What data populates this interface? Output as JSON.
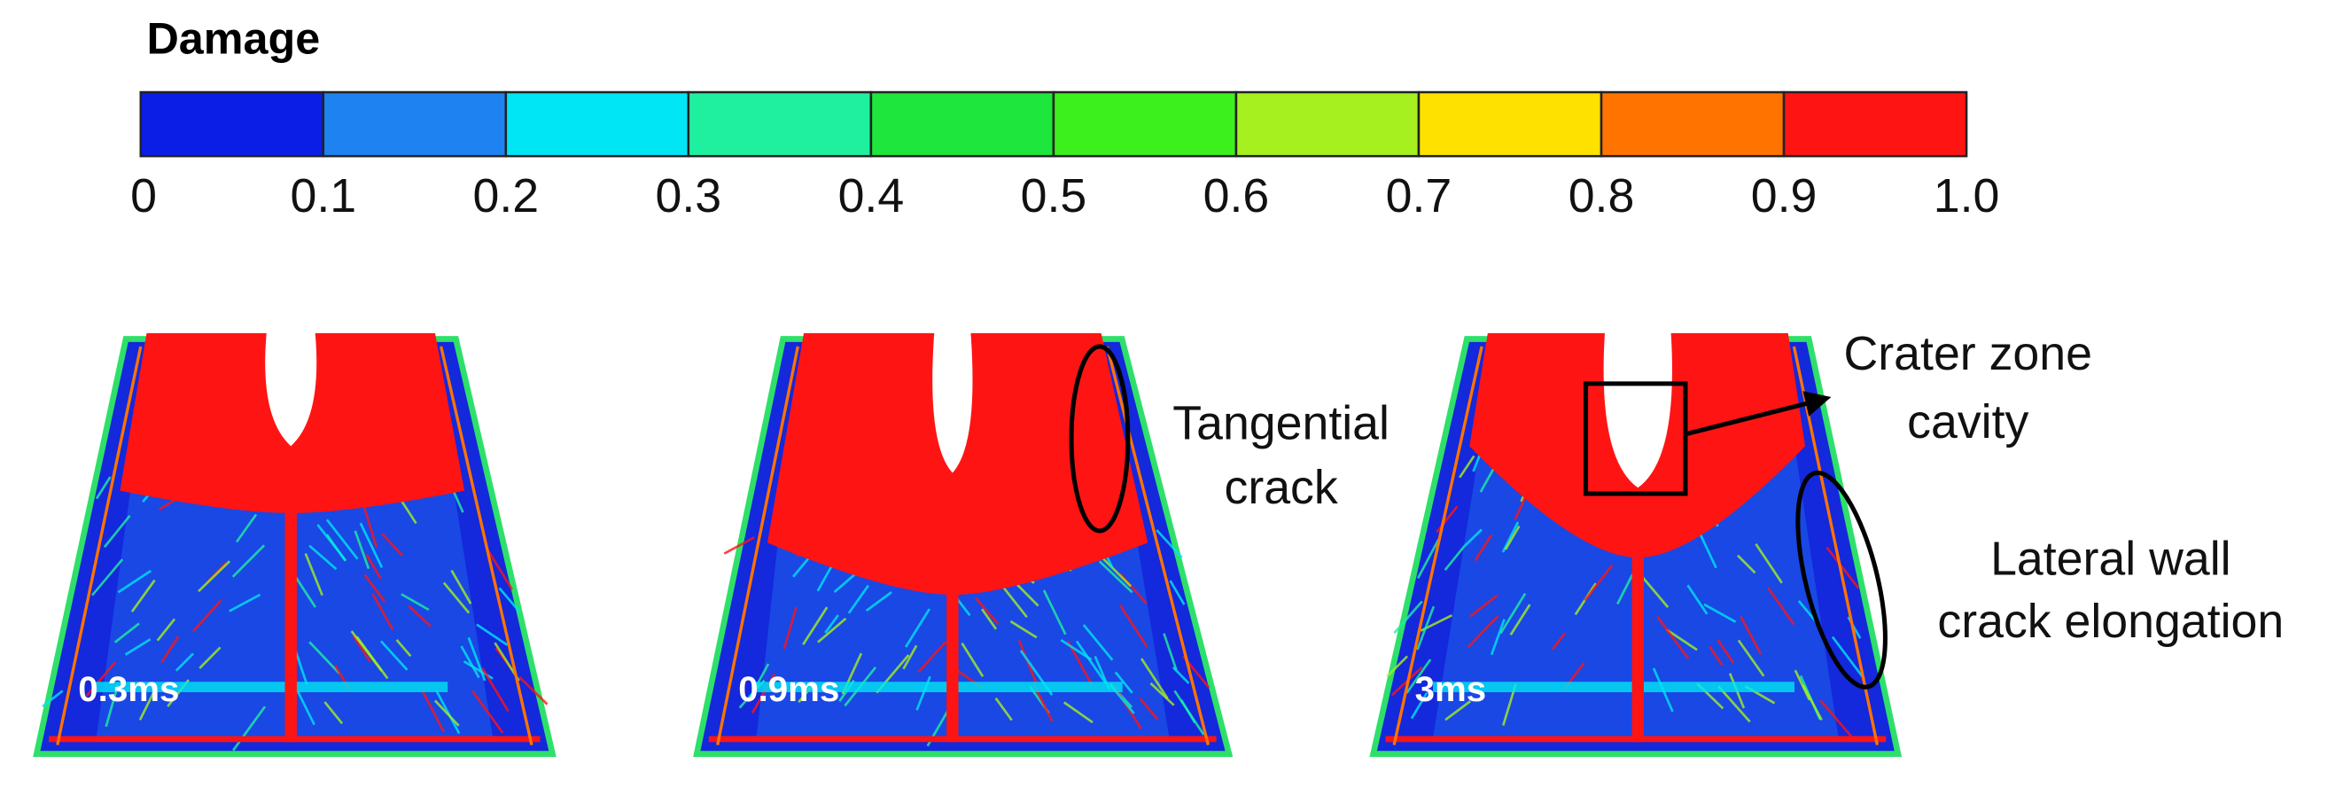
{
  "colorbar": {
    "title": "Damage",
    "colors": [
      "#0a1ee6",
      "#1e82f0",
      "#00e6f5",
      "#1ef0a0",
      "#1ee63c",
      "#3cf01e",
      "#a5f01e",
      "#ffe100",
      "#ff7300",
      "#ff1414"
    ],
    "ticks": [
      "0",
      "0.1",
      "0.2",
      "0.3",
      "0.4",
      "0.5",
      "0.6",
      "0.7",
      "0.8",
      "0.9",
      "1.0"
    ]
  },
  "panels": [
    {
      "label": "0.3ms"
    },
    {
      "label": "0.9ms"
    },
    {
      "label": "3ms"
    }
  ],
  "annotations": [
    {
      "lines": [
        "Tangential",
        "crack"
      ]
    },
    {
      "lines": [
        "Crater zone",
        "cavity"
      ]
    },
    {
      "lines": [
        "Lateral wall",
        "crack elongation"
      ]
    }
  ]
}
